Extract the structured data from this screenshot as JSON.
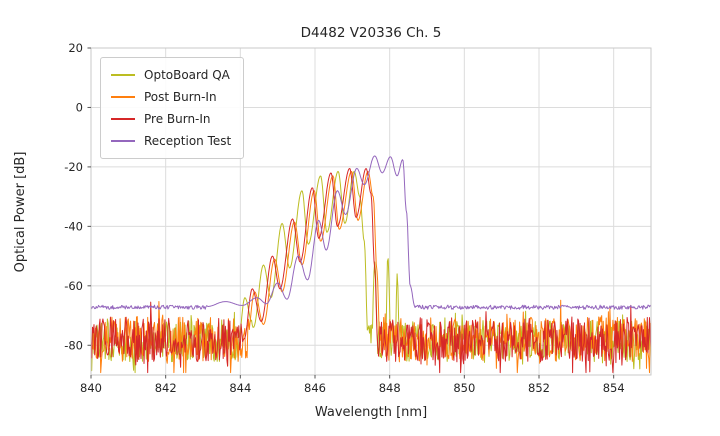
{
  "chart_data": {
    "type": "line",
    "title": "D4482 V20336 Ch. 5",
    "xlabel": "Wavelength [nm]",
    "ylabel": "Optical Power [dB]",
    "xlim": [
      840,
      855
    ],
    "ylim": [
      -90,
      20
    ],
    "xticks": [
      840,
      842,
      844,
      846,
      848,
      850,
      852,
      854
    ],
    "yticks": [
      20,
      0,
      -20,
      -40,
      -60,
      -80
    ],
    "grid": true,
    "legend_position": "upper-left",
    "series": [
      {
        "name": "OptoBoard QA",
        "color": "#bcbd22",
        "noise": {
          "floor": -78.5,
          "amp": 7,
          "spiky": true
        },
        "points": [
          [
            843.95,
            -78
          ],
          [
            844.12,
            -64
          ],
          [
            844.35,
            -74
          ],
          [
            844.62,
            -53
          ],
          [
            844.82,
            -64
          ],
          [
            845.12,
            -39
          ],
          [
            845.32,
            -54
          ],
          [
            845.65,
            -28
          ],
          [
            845.82,
            -46
          ],
          [
            846.15,
            -23
          ],
          [
            846.32,
            -42
          ],
          [
            846.62,
            -21.5
          ],
          [
            846.8,
            -39
          ],
          [
            847.05,
            -21.5
          ],
          [
            847.2,
            -30
          ],
          [
            847.32,
            -45
          ],
          [
            847.42,
            -78
          ],
          [
            847.5,
            -86
          ],
          [
            847.6,
            -52
          ],
          [
            847.7,
            -86
          ],
          [
            847.88,
            -86
          ],
          [
            847.95,
            -50
          ],
          [
            848.05,
            -86
          ],
          [
            848.14,
            -86
          ],
          [
            848.2,
            -56
          ],
          [
            848.28,
            -86
          ]
        ]
      },
      {
        "name": "Post Burn-In",
        "color": "#ff7f0e",
        "noise": {
          "floor": -78,
          "amp": 7.5,
          "spiky": true
        },
        "points": [
          [
            844.18,
            -78
          ],
          [
            844.38,
            -62
          ],
          [
            844.62,
            -73
          ],
          [
            844.92,
            -51
          ],
          [
            845.12,
            -62
          ],
          [
            845.45,
            -38.5
          ],
          [
            845.65,
            -53
          ],
          [
            845.98,
            -28
          ],
          [
            846.15,
            -45
          ],
          [
            846.48,
            -23
          ],
          [
            846.65,
            -41
          ],
          [
            846.98,
            -21.5
          ],
          [
            847.15,
            -38
          ],
          [
            847.42,
            -21.5
          ],
          [
            847.56,
            -30
          ],
          [
            847.66,
            -55
          ],
          [
            847.74,
            -80
          ]
        ]
      },
      {
        "name": "Pre Burn-In",
        "color": "#d62728",
        "noise": {
          "floor": -78,
          "amp": 7.5,
          "spiky": true
        },
        "points": [
          [
            844.1,
            -78
          ],
          [
            844.32,
            -61
          ],
          [
            844.56,
            -72
          ],
          [
            844.86,
            -50
          ],
          [
            845.06,
            -61
          ],
          [
            845.4,
            -37.5
          ],
          [
            845.6,
            -52
          ],
          [
            845.93,
            -27
          ],
          [
            846.1,
            -44
          ],
          [
            846.43,
            -22
          ],
          [
            846.6,
            -40
          ],
          [
            846.93,
            -20.5
          ],
          [
            847.1,
            -37
          ],
          [
            847.37,
            -20.5
          ],
          [
            847.5,
            -29
          ],
          [
            847.6,
            -54
          ],
          [
            847.68,
            -80
          ]
        ]
      },
      {
        "name": "Reception Test",
        "color": "#9467bd",
        "noise": {
          "floor": -67.2,
          "amp": 0.7,
          "spiky": false
        },
        "points": [
          [
            843.1,
            -67
          ],
          [
            843.6,
            -65.3
          ],
          [
            844.05,
            -66.6
          ],
          [
            844.45,
            -64
          ],
          [
            844.7,
            -66
          ],
          [
            845.0,
            -59
          ],
          [
            845.25,
            -64.5
          ],
          [
            845.55,
            -50
          ],
          [
            845.8,
            -58
          ],
          [
            846.1,
            -38
          ],
          [
            846.3,
            -48
          ],
          [
            846.6,
            -28
          ],
          [
            846.82,
            -36
          ],
          [
            847.12,
            -20.5
          ],
          [
            847.32,
            -26
          ],
          [
            847.6,
            -16.3
          ],
          [
            847.8,
            -22
          ],
          [
            848.02,
            -16.6
          ],
          [
            848.2,
            -23
          ],
          [
            848.35,
            -17.5
          ],
          [
            848.45,
            -35
          ],
          [
            848.55,
            -60
          ],
          [
            848.68,
            -67.3
          ]
        ]
      }
    ]
  }
}
